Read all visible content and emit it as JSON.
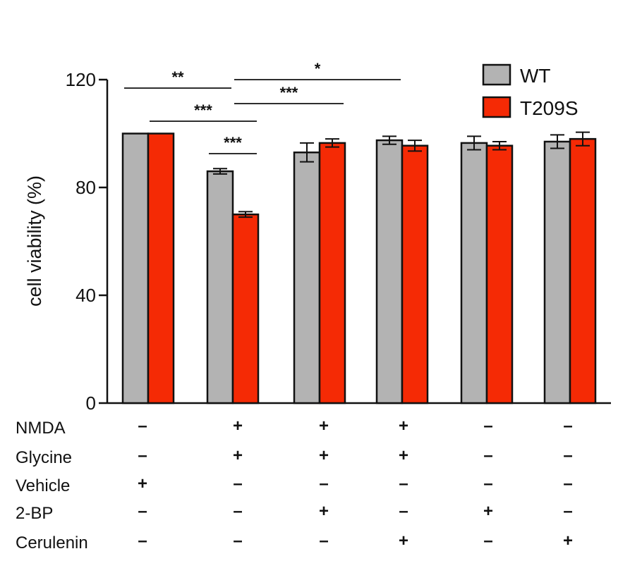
{
  "chart_data": {
    "type": "bar",
    "title": "",
    "ylabel": "cell viability (%)",
    "ylim": [
      0,
      120
    ],
    "yticks": [
      0,
      40,
      80,
      120
    ],
    "series": [
      {
        "name": "WT",
        "color": "#b3b3b3",
        "values": [
          100,
          86,
          93,
          97.5,
          96.5,
          97
        ],
        "errors": [
          0,
          1,
          3.5,
          1.5,
          2.5,
          2.5
        ]
      },
      {
        "name": "T209S",
        "color": "#f52a05",
        "values": [
          100,
          70,
          96.5,
          95.5,
          95.5,
          98
        ],
        "errors": [
          0,
          1,
          1.5,
          2,
          1.5,
          2.5
        ]
      }
    ],
    "legend_position": "top-right",
    "conditions": [
      {
        "label": "NMDA",
        "values": [
          "–",
          "+",
          "+",
          "+",
          "–",
          "–"
        ]
      },
      {
        "label": "Glycine",
        "values": [
          "–",
          "+",
          "+",
          "+",
          "–",
          "–"
        ]
      },
      {
        "label": "Vehicle",
        "values": [
          "+",
          "–",
          "–",
          "–",
          "–",
          "–"
        ]
      },
      {
        "label": "2-BP",
        "values": [
          "–",
          "–",
          "+",
          "–",
          "+",
          "–"
        ]
      },
      {
        "label": "Cerulenin",
        "values": [
          "–",
          "–",
          "–",
          "+",
          "–",
          "+"
        ]
      }
    ],
    "significance": [
      {
        "label": "**",
        "from": [
          0,
          "WT"
        ],
        "to": [
          1,
          "WT"
        ]
      },
      {
        "label": "*",
        "from": [
          1,
          "T209S"
        ],
        "to": [
          3,
          "WT"
        ]
      },
      {
        "label": "***",
        "from": [
          1,
          "T209S"
        ],
        "to": [
          2,
          "T209S"
        ]
      },
      {
        "label": "***",
        "from": [
          0,
          "T209S"
        ],
        "to": [
          1,
          "T209S"
        ]
      },
      {
        "label": "***",
        "from": [
          1,
          "WT"
        ],
        "to": [
          1,
          "T209S"
        ]
      }
    ]
  }
}
